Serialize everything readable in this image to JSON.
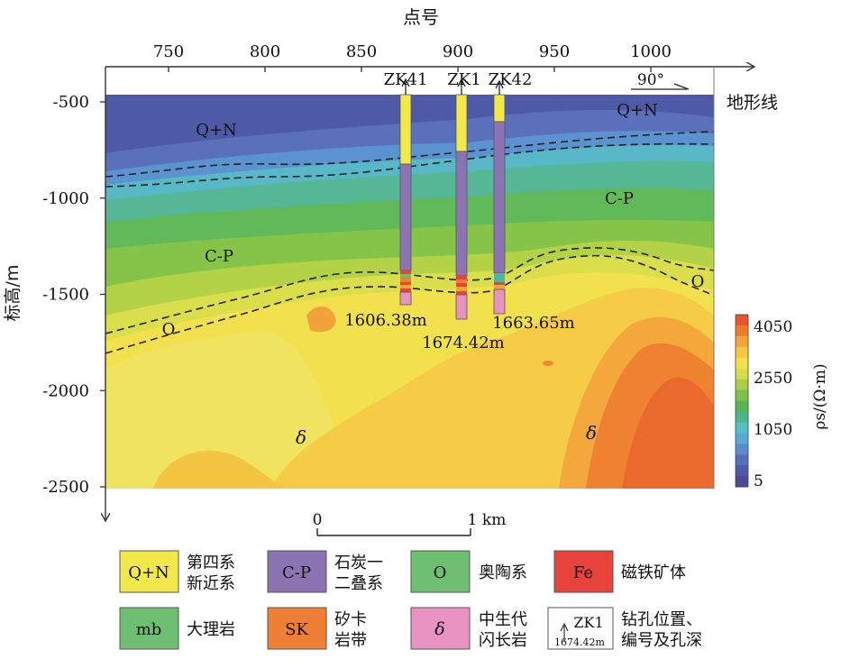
{
  "top_axis": {
    "title": "点号",
    "ticks": [
      {
        "value": 750,
        "label": "750"
      },
      {
        "value": 800,
        "label": "800"
      },
      {
        "value": 850,
        "label": "850"
      },
      {
        "value": 900,
        "label": "900"
      },
      {
        "value": 950,
        "label": "950"
      },
      {
        "value": 1000,
        "label": "1000"
      }
    ]
  },
  "left_axis": {
    "title": "标高/m",
    "ticks": [
      {
        "value": -500,
        "label": "-500"
      },
      {
        "value": -1000,
        "label": "-1000"
      },
      {
        "value": -1500,
        "label": "-1500"
      },
      {
        "value": -2000,
        "label": "-2000"
      },
      {
        "value": -2500,
        "label": "-2500"
      }
    ]
  },
  "terrain_label": "地形线",
  "direction_label": "90°",
  "colorbar": {
    "title": "ρs/(Ω·m)",
    "labels": [
      "4050",
      "2550",
      "1050",
      "5"
    ],
    "colors": [
      "#e8542c",
      "#ef7a2b",
      "#f4a536",
      "#f6c842",
      "#f3df4a",
      "#d8dc4a",
      "#a9cf46",
      "#7cc24a",
      "#58b652",
      "#4cb78a",
      "#56bfc2",
      "#5aa9d4",
      "#5a8ccc",
      "#566fbd",
      "#4f58a8",
      "#4a4a96"
    ]
  },
  "boreholes": [
    {
      "name": "ZK41",
      "depth": "1606.38m"
    },
    {
      "name": "ZK1",
      "depth": "1674.42m"
    },
    {
      "name": "ZK42",
      "depth": "1663.65m"
    }
  ],
  "units": [
    {
      "label": "Q+N"
    },
    {
      "label": "Q+N"
    },
    {
      "label": "C-P"
    },
    {
      "label": "C-P"
    },
    {
      "label": "O"
    },
    {
      "label": "O"
    },
    {
      "label": "δ"
    },
    {
      "label": "δ"
    }
  ],
  "scale_bar": {
    "start": "0",
    "end": "1 km"
  },
  "legend": [
    {
      "symbol": "Q+N",
      "text1": "第四系",
      "text2": "新近系",
      "color": "#f3e84a"
    },
    {
      "symbol": "C-P",
      "text1": "石炭一",
      "text2": "二叠系",
      "color": "#8c74b4"
    },
    {
      "symbol": "O",
      "text1": "奥陶系",
      "text2": "",
      "color": "#6fbf73"
    },
    {
      "symbol": "Fe",
      "text1": "磁铁矿体",
      "text2": "",
      "color": "#e8433a"
    },
    {
      "symbol": "mb",
      "text1": "大理岩",
      "text2": "",
      "color": "#6fbf73"
    },
    {
      "symbol": "SK",
      "text1": "矽卡",
      "text2": "岩带",
      "color": "#ef7f35"
    },
    {
      "symbol": "δ",
      "text1": "中生代",
      "text2": "闪长岩",
      "color": "#e792c0"
    },
    {
      "symbol": "ZK1",
      "sub": "1674.42m",
      "text1": "钻孔位置、",
      "text2": "编号及孔深",
      "color": "#ffffff"
    }
  ]
}
